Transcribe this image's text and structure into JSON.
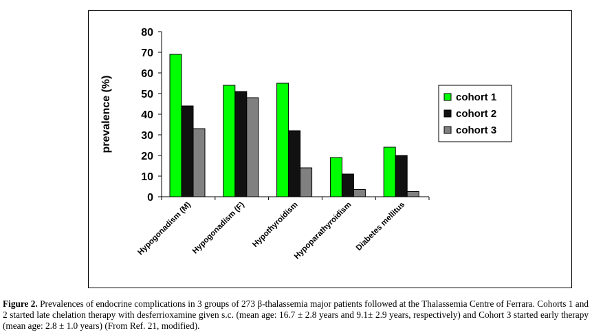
{
  "chart_data": {
    "type": "bar",
    "categories": [
      "Hypogonadism (M)",
      "Hypogonadism (F)",
      "Hypothyroidism",
      "Hypoparathyroidism",
      "Diabetes mellitus"
    ],
    "series": [
      {
        "name": "cohort 1",
        "values": [
          69,
          54,
          55,
          19,
          24
        ]
      },
      {
        "name": "cohort 2",
        "values": [
          44,
          51,
          32,
          11,
          20
        ]
      },
      {
        "name": "cohort 3",
        "values": [
          33,
          48,
          14,
          3.5,
          2.5
        ]
      }
    ],
    "ylabel": "prevalence (%)",
    "xlabel": "",
    "ylim": [
      0,
      80
    ],
    "yticks": [
      0,
      10,
      20,
      30,
      40,
      50,
      60,
      70,
      80
    ],
    "grid": false,
    "legend_position": "right",
    "colors": [
      "#00ff00",
      "#111111",
      "#808080"
    ]
  },
  "caption": {
    "label": "Figure 2.",
    "text": " Prevalences of endocrine complications in 3 groups of 273 β-thalassemia major patients followed at the Thalassemia Centre of Ferrara. Cohorts 1 and 2 started late chelation therapy with desferrioxamine given s.c. (mean age: 16.7 ± 2.8 years and 9.1± 2.9 years, respectively) and Cohort 3 started early therapy (mean age: 2.8 ± 1.0 years) (From Ref. 21, modified)."
  }
}
